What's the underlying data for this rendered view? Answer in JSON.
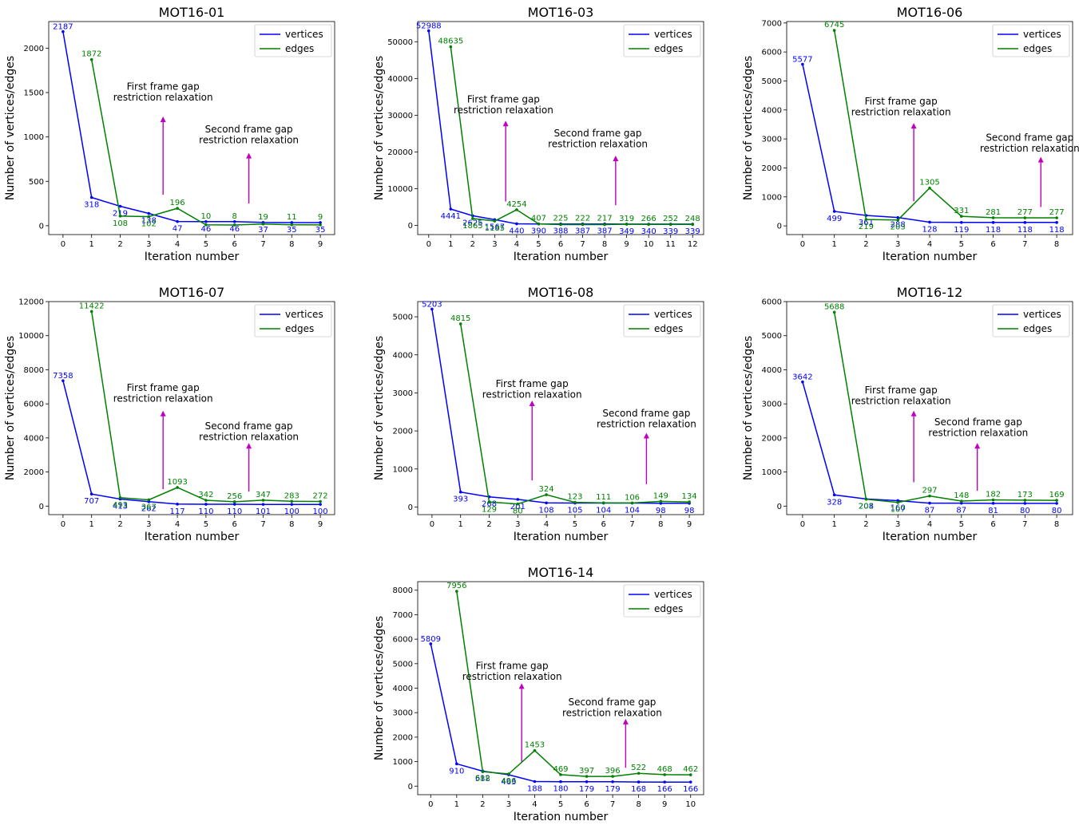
{
  "figure": {
    "xlabel": "Iteration number",
    "ylabel": "Number of vertices/edges",
    "legend": {
      "position": "top-right",
      "entries": [
        "vertices",
        "edges"
      ]
    },
    "colors": {
      "vertices": "#0000ff",
      "edges": "#008000",
      "arrow": "#bf00bf",
      "axis": "#000000"
    },
    "annotations": {
      "first": [
        "First frame gap",
        "restriction relaxation"
      ],
      "second": [
        "Second frame gap",
        "restriction relaxation"
      ]
    }
  },
  "chart_data": [
    {
      "type": "line",
      "title": "MOT16-01",
      "xlabel": "Iteration number",
      "ylabel": "Number of vertices/edges",
      "x": [
        0,
        1,
        2,
        3,
        4,
        5,
        6,
        7,
        8,
        9
      ],
      "ylim": [
        -100,
        2300
      ],
      "yticks": [
        0,
        500,
        1000,
        1500,
        2000
      ],
      "series": [
        {
          "name": "vertices",
          "x": [
            0,
            1,
            2,
            3,
            4,
            5,
            6,
            7,
            8,
            9
          ],
          "values": [
            2187,
            318,
            219,
            138,
            47,
            46,
            46,
            37,
            35,
            35
          ]
        },
        {
          "name": "edges",
          "x": [
            1,
            2,
            3,
            4,
            5,
            6,
            7,
            8,
            9
          ],
          "values": [
            1872,
            108,
            102,
            196,
            10,
            8,
            19,
            11,
            9
          ]
        }
      ],
      "annotations": [
        {
          "text": [
            "First frame gap",
            "restriction relaxation"
          ],
          "x": 3.5,
          "arrow_from": 350,
          "arrow_to": 1230
        },
        {
          "text": [
            "Second frame gap",
            "restriction relaxation"
          ],
          "x": 6.5,
          "arrow_from": 250,
          "arrow_to": 820
        }
      ]
    },
    {
      "type": "line",
      "title": "MOT16-03",
      "xlabel": "Iteration number",
      "ylabel": "Number of vertices/edges",
      "x": [
        0,
        1,
        2,
        3,
        4,
        5,
        6,
        7,
        8,
        9,
        10,
        11,
        12
      ],
      "ylim": [
        -2500,
        55500
      ],
      "yticks": [
        0,
        10000,
        20000,
        30000,
        40000,
        50000
      ],
      "series": [
        {
          "name": "vertices",
          "x": [
            0,
            1,
            2,
            3,
            4,
            5,
            6,
            7,
            8,
            9,
            10,
            11,
            12
          ],
          "values": [
            52988,
            4441,
            2625,
            1567,
            440,
            390,
            388,
            387,
            387,
            349,
            340,
            339,
            339
          ]
        },
        {
          "name": "edges",
          "x": [
            1,
            2,
            3,
            4,
            5,
            6,
            7,
            8,
            9,
            10,
            11,
            12
          ],
          "values": [
            48635,
            1865,
            1185,
            4254,
            407,
            225,
            222,
            217,
            319,
            266,
            252,
            248
          ]
        }
      ],
      "annotations": [
        {
          "text": [
            "First frame gap",
            "restriction relaxation"
          ],
          "x": 3.5,
          "arrow_from": 6500,
          "arrow_to": 28500
        },
        {
          "text": [
            "Second frame gap",
            "restriction relaxation"
          ],
          "x": 8.5,
          "arrow_from": 5500,
          "arrow_to": 19000
        }
      ]
    },
    {
      "type": "line",
      "title": "MOT16-06",
      "xlabel": "Iteration number",
      "ylabel": "Number of vertices/edges",
      "x": [
        0,
        1,
        2,
        3,
        4,
        5,
        6,
        7,
        8
      ],
      "ylim": [
        -300,
        7050
      ],
      "yticks": [
        0,
        1000,
        2000,
        3000,
        4000,
        5000,
        6000,
        7000
      ],
      "series": [
        {
          "name": "vertices",
          "x": [
            0,
            1,
            2,
            3,
            4,
            5,
            6,
            7,
            8
          ],
          "values": [
            5577,
            499,
            361,
            288,
            128,
            119,
            118,
            118,
            118
          ]
        },
        {
          "name": "edges",
          "x": [
            1,
            2,
            3,
            4,
            5,
            6,
            7,
            8
          ],
          "values": [
            6745,
            219,
            203,
            1305,
            331,
            281,
            277,
            277
          ]
        }
      ],
      "annotations": [
        {
          "text": [
            "First frame gap",
            "restriction relaxation"
          ],
          "x": 3.5,
          "arrow_from": 850,
          "arrow_to": 3550
        },
        {
          "text": [
            "Second frame gap",
            "restriction relaxation"
          ],
          "x": 7.5,
          "arrow_from": 650,
          "arrow_to": 2380
        }
      ]
    },
    {
      "type": "line",
      "title": "MOT16-07",
      "xlabel": "Iteration number",
      "ylabel": "Number of vertices/edges",
      "x": [
        0,
        1,
        2,
        3,
        4,
        5,
        6,
        7,
        8,
        9
      ],
      "ylim": [
        -500,
        12000
      ],
      "yticks": [
        0,
        2000,
        4000,
        6000,
        8000,
        10000,
        12000
      ],
      "series": [
        {
          "name": "vertices",
          "x": [
            0,
            1,
            2,
            3,
            4,
            5,
            6,
            7,
            8,
            9
          ],
          "values": [
            7358,
            707,
            413,
            262,
            117,
            110,
            110,
            101,
            100,
            100
          ]
        },
        {
          "name": "edges",
          "x": [
            1,
            2,
            3,
            4,
            5,
            6,
            7,
            8,
            9
          ],
          "values": [
            11422,
            493,
            367,
            1093,
            342,
            256,
            347,
            283,
            272
          ]
        }
      ],
      "annotations": [
        {
          "text": [
            "First frame gap",
            "restriction relaxation"
          ],
          "x": 3.5,
          "arrow_from": 1000,
          "arrow_to": 5600
        },
        {
          "text": [
            "Second frame gap",
            "restriction relaxation"
          ],
          "x": 6.5,
          "arrow_from": 850,
          "arrow_to": 3700
        }
      ]
    },
    {
      "type": "line",
      "title": "MOT16-08",
      "xlabel": "Iteration number",
      "ylabel": "Number of vertices/edges",
      "x": [
        0,
        1,
        2,
        3,
        4,
        5,
        6,
        7,
        8,
        9
      ],
      "ylim": [
        -200,
        5400
      ],
      "yticks": [
        0,
        1000,
        2000,
        3000,
        4000,
        5000
      ],
      "series": [
        {
          "name": "vertices",
          "x": [
            0,
            1,
            2,
            3,
            4,
            5,
            6,
            7,
            8,
            9
          ],
          "values": [
            5203,
            393,
            268,
            201,
            108,
            105,
            104,
            104,
            98,
            98
          ]
        },
        {
          "name": "edges",
          "x": [
            1,
            2,
            3,
            4,
            5,
            6,
            7,
            8,
            9
          ],
          "values": [
            4815,
            129,
            80,
            324,
            123,
            111,
            106,
            149,
            134
          ]
        }
      ],
      "annotations": [
        {
          "text": [
            "First frame gap",
            "restriction relaxation"
          ],
          "x": 3.5,
          "arrow_from": 700,
          "arrow_to": 2800
        },
        {
          "text": [
            "Second frame gap",
            "restriction relaxation"
          ],
          "x": 7.5,
          "arrow_from": 600,
          "arrow_to": 1950
        }
      ]
    },
    {
      "type": "line",
      "title": "MOT16-12",
      "xlabel": "Iteration number",
      "ylabel": "Number of vertices/edges",
      "x": [
        0,
        1,
        2,
        3,
        4,
        5,
        6,
        7,
        8
      ],
      "ylim": [
        -250,
        6000
      ],
      "yticks": [
        0,
        1000,
        2000,
        3000,
        4000,
        5000,
        6000
      ],
      "series": [
        {
          "name": "vertices",
          "x": [
            0,
            1,
            2,
            3,
            4,
            5,
            6,
            7,
            8
          ],
          "values": [
            3642,
            328,
            208,
            160,
            87,
            87,
            81,
            80,
            80
          ]
        },
        {
          "name": "edges",
          "x": [
            1,
            2,
            3,
            4,
            5,
            6,
            7,
            8
          ],
          "values": [
            5688,
            201,
            107,
            297,
            148,
            182,
            173,
            169
          ]
        }
      ],
      "annotations": [
        {
          "text": [
            "First frame gap",
            "restriction relaxation"
          ],
          "x": 3.5,
          "arrow_from": 700,
          "arrow_to": 2800
        },
        {
          "text": [
            "Second frame gap",
            "restriction relaxation"
          ],
          "x": 5.5,
          "arrow_from": 450,
          "arrow_to": 1850
        }
      ]
    },
    {
      "type": "line",
      "title": "MOT16-14",
      "xlabel": "Iteration number",
      "ylabel": "Number of vertices/edges",
      "x": [
        0,
        1,
        2,
        3,
        4,
        5,
        6,
        7,
        8,
        9,
        10
      ],
      "ylim": [
        -350,
        8350
      ],
      "yticks": [
        0,
        1000,
        2000,
        3000,
        4000,
        5000,
        6000,
        7000,
        8000
      ],
      "series": [
        {
          "name": "vertices",
          "x": [
            0,
            1,
            2,
            3,
            4,
            5,
            6,
            7,
            8,
            9,
            10
          ],
          "values": [
            5809,
            910,
            612,
            463,
            188,
            180,
            179,
            179,
            168,
            166,
            166
          ]
        },
        {
          "name": "edges",
          "x": [
            1,
            2,
            3,
            4,
            5,
            6,
            7,
            8,
            9,
            10
          ],
          "values": [
            7956,
            588,
            496,
            1453,
            469,
            397,
            396,
            522,
            468,
            462
          ]
        }
      ],
      "annotations": [
        {
          "text": [
            "First frame gap",
            "restriction relaxation"
          ],
          "x": 3.5,
          "arrow_from": 1000,
          "arrow_to": 4200
        },
        {
          "text": [
            "Second frame gap",
            "restriction relaxation"
          ],
          "x": 7.5,
          "arrow_from": 750,
          "arrow_to": 2750
        }
      ]
    }
  ]
}
